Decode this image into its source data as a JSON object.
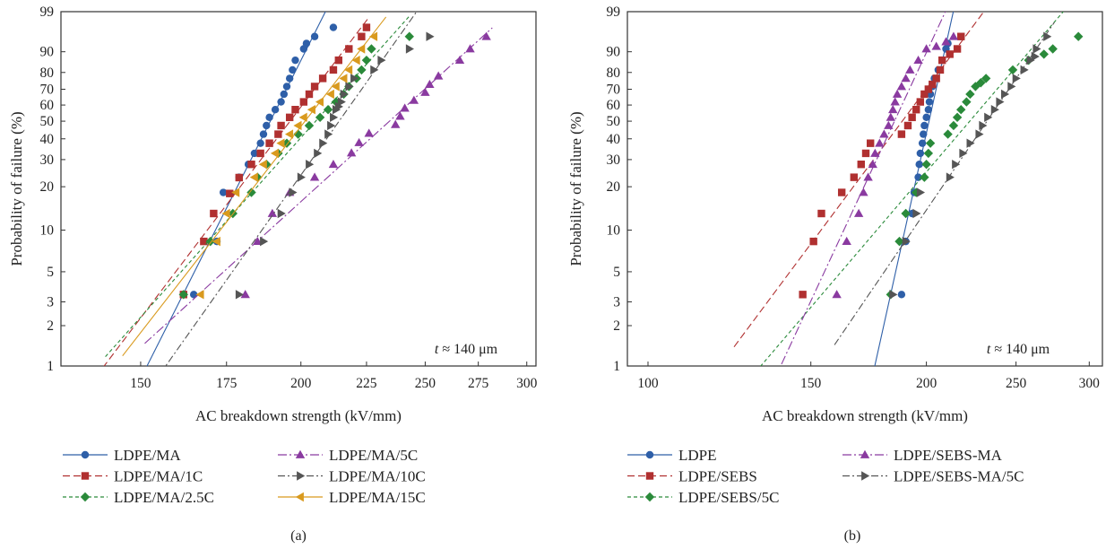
{
  "chart_data": [
    {
      "type": "scatter",
      "panel_label": "(a)",
      "xlabel": "AC breakdown strength (kV/mm)",
      "ylabel": "Probability of failure (%)",
      "x_scale": "log",
      "y_scale": "weibull",
      "xlim": [
        130,
        305
      ],
      "ylim": [
        1,
        99
      ],
      "x_ticks": [
        150,
        175,
        200,
        225,
        250,
        275,
        300
      ],
      "y_ticks": [
        1,
        2,
        3,
        5,
        10,
        20,
        30,
        40,
        50,
        60,
        70,
        80,
        90,
        99
      ],
      "annotation_prefix": "t",
      "annotation_rest": " ≈ 140 μm",
      "legend_position": "bottom",
      "series": [
        {
          "name": "LDPE/MA",
          "color": "#2e5fa8",
          "marker": "circle",
          "dash": "solid",
          "x": [
            165,
            172,
            174,
            179,
            182,
            184,
            186,
            187,
            188,
            189,
            191,
            193,
            194,
            195,
            196,
            197,
            198,
            201,
            202,
            205,
            212
          ],
          "y": [
            3.4,
            8.3,
            18.3,
            23.1,
            28.0,
            32.8,
            37.7,
            42.5,
            47.4,
            52.3,
            57.1,
            62.0,
            66.9,
            71.7,
            76.6,
            81.4,
            86.3,
            91.1,
            93.0,
            95.0,
            97.0
          ],
          "fit_x": [
            150,
            211.9
          ]
        },
        {
          "name": "LDPE/MA/1C",
          "color": "#b03030",
          "marker": "square",
          "dash": "8,4",
          "x": [
            162,
            168,
            171,
            176,
            179,
            183,
            186,
            189,
            192,
            193,
            196,
            198,
            201,
            203,
            205,
            208,
            212,
            214,
            218,
            223,
            225
          ],
          "y": [
            3.4,
            8.3,
            13.1,
            18.0,
            23.0,
            28.0,
            32.8,
            37.7,
            42.5,
            47.4,
            52.3,
            57.1,
            62.0,
            66.9,
            71.7,
            76.6,
            81.4,
            86.3,
            91.1,
            95.0,
            97.0
          ],
          "fit_x": [
            135.3,
            225.6
          ]
        },
        {
          "name": "LDPE/MA/2.5C",
          "color": "#2a8a3a",
          "marker": "diamond",
          "dash": "4,3",
          "x": [
            162,
            170,
            177,
            183,
            185,
            188,
            192,
            195,
            199,
            203,
            207,
            210,
            213,
            216,
            218,
            221,
            223,
            225,
            227,
            243
          ],
          "y": [
            3.4,
            8.3,
            13.1,
            18.3,
            23.1,
            28.0,
            32.8,
            37.7,
            42.5,
            47.4,
            52.3,
            57.1,
            62.0,
            66.9,
            71.7,
            76.6,
            81.4,
            86.3,
            91.1,
            95.0
          ],
          "fit_x": [
            140.8,
            243
          ]
        },
        {
          "name": "LDPE/MA/5C",
          "color": "#8a3aa0",
          "marker": "triangle-up",
          "dash": "10,3,2,3",
          "x": [
            181,
            185,
            190,
            196,
            205,
            212,
            219,
            222,
            226,
            237,
            239,
            241,
            245,
            250,
            252,
            256,
            266,
            271,
            279
          ],
          "y": [
            3.4,
            8.3,
            13.1,
            18.3,
            23.1,
            28.0,
            33.0,
            38.0,
            43.0,
            48.0,
            53.0,
            58.0,
            63.0,
            68.0,
            73.0,
            78.0,
            86.3,
            91.1,
            95.0
          ],
          "fit_x": [
            151.1,
            282
          ]
        },
        {
          "name": "LDPE/MA/10C",
          "color": "#555555",
          "marker": "triangle-right",
          "dash": "8,3,2,3",
          "x": [
            179,
            187,
            193,
            197,
            200,
            203,
            206,
            208,
            210,
            211,
            212,
            213,
            214,
            215,
            216,
            218,
            220,
            228,
            231,
            243,
            252
          ],
          "y": [
            3.4,
            8.3,
            13.1,
            18.3,
            23.1,
            28.0,
            32.8,
            37.7,
            42.5,
            47.4,
            52.3,
            57.1,
            59.0,
            62.0,
            66.9,
            71.7,
            76.6,
            81.4,
            86.3,
            91.1,
            95.0
          ],
          "fit_x": [
            148.6,
            252
          ]
        },
        {
          "name": "LDPE/MA/15C",
          "color": "#d99a1e",
          "marker": "triangle-left",
          "dash": "solid",
          "x": [
            167,
            172,
            175,
            178,
            184,
            187,
            191,
            193,
            196,
            199,
            201,
            204,
            207,
            211,
            213,
            216,
            218,
            221,
            223,
            228
          ],
          "y": [
            3.4,
            8.3,
            13.1,
            18.3,
            23.1,
            28.0,
            32.8,
            37.7,
            42.5,
            47.4,
            52.3,
            57.1,
            62.0,
            66.9,
            71.7,
            76.6,
            81.4,
            86.3,
            91.1,
            95.0
          ],
          "fit_x": [
            145.2,
            233
          ]
        }
      ]
    },
    {
      "type": "scatter",
      "panel_label": "(b)",
      "xlabel": "AC breakdown strength (kV/mm)",
      "ylabel": "Probability of failure (%)",
      "x_scale": "log",
      "y_scale": "weibull",
      "xlim": [
        95,
        310
      ],
      "ylim": [
        1,
        99
      ],
      "x_ticks": [
        100,
        150,
        200,
        250,
        300
      ],
      "y_ticks": [
        1,
        2,
        3,
        5,
        10,
        20,
        30,
        40,
        50,
        60,
        70,
        80,
        90,
        99
      ],
      "annotation_prefix": "t",
      "annotation_rest": " ≈ 140 μm",
      "legend_position": "bottom",
      "series": [
        {
          "name": "LDPE",
          "color": "#2e5fa8",
          "marker": "circle",
          "dash": "solid",
          "x": [
            188,
            190,
            193,
            194,
            196,
            196.5,
            197,
            198,
            198.5,
            199,
            200,
            201,
            201.5,
            202,
            203,
            204,
            206,
            208,
            210,
            211,
            218
          ],
          "y": [
            3.4,
            8.3,
            13.1,
            18.3,
            23.1,
            28.0,
            32.8,
            37.7,
            42.5,
            47.4,
            52.3,
            57.1,
            62.0,
            66.9,
            71.7,
            76.6,
            81.4,
            86.3,
            91.1,
            93.0,
            95.0
          ],
          "fit_x": [
            172.6,
            220
          ]
        },
        {
          "name": "LDPE/SEBS",
          "color": "#b03030",
          "marker": "square",
          "dash": "8,4",
          "x": [
            147,
            151,
            154,
            162,
            167,
            170,
            172,
            174,
            188,
            191,
            193,
            195,
            197,
            199,
            201,
            203,
            205,
            207,
            208,
            212,
            216,
            218
          ],
          "y": [
            3.4,
            8.3,
            13.1,
            18.3,
            23.1,
            28.0,
            32.8,
            37.7,
            42.5,
            47.4,
            52.3,
            57.1,
            62.0,
            66.9,
            70.0,
            73.0,
            76.6,
            81.4,
            86.3,
            89.0,
            91.1,
            95.0
          ],
          "fit_x": [
            123.9,
            232
          ]
        },
        {
          "name": "LDPE/SEBS/5C",
          "color": "#2a8a3a",
          "marker": "diamond",
          "dash": "4,3",
          "x": [
            183,
            187,
            190,
            195,
            199,
            200,
            201,
            202,
            211,
            214,
            216,
            218,
            221,
            223,
            226,
            229,
            232,
            248,
            258,
            268,
            274,
            292
          ],
          "y": [
            3.4,
            8.3,
            13.1,
            18.3,
            23.1,
            28.0,
            32.8,
            37.7,
            42.5,
            47.4,
            52.3,
            57.1,
            62.0,
            66.9,
            71.7,
            74.0,
            76.6,
            81.4,
            86.3,
            89.0,
            91.1,
            95.0
          ],
          "fit_x": [
            125.7,
            295
          ]
        },
        {
          "name": "LDPE/SEBS-MA",
          "color": "#8a3aa0",
          "marker": "triangle-up",
          "dash": "10,3,2,3",
          "x": [
            160,
            164,
            169,
            171,
            173,
            175,
            176,
            178,
            180,
            182,
            183,
            184,
            185,
            186,
            188,
            190,
            192,
            196,
            200,
            205,
            210,
            214
          ],
          "y": [
            3.4,
            8.3,
            13.1,
            18.3,
            23.1,
            28.0,
            32.8,
            37.7,
            42.5,
            47.4,
            52.3,
            57.1,
            62.0,
            66.9,
            71.7,
            76.6,
            81.4,
            86.3,
            91.1,
            92.0,
            93.5,
            95.0
          ],
          "fit_x": [
            130.3,
            218
          ]
        },
        {
          "name": "LDPE/SEBS-MA/5C",
          "color": "#555555",
          "marker": "triangle-right",
          "dash": "8,3,2,3",
          "x": [
            184,
            190,
            195,
            197,
            212,
            215,
            219,
            223,
            228,
            230,
            233,
            237,
            240,
            243,
            247,
            250,
            255,
            259,
            262,
            263,
            270
          ],
          "y": [
            3.4,
            8.3,
            13.1,
            18.3,
            23.1,
            28.0,
            32.8,
            37.7,
            42.5,
            47.4,
            52.3,
            57.1,
            62.0,
            66.9,
            71.7,
            76.6,
            81.4,
            86.3,
            88.0,
            91.1,
            95.0
          ],
          "fit_x": [
            159.1,
            275
          ]
        }
      ]
    }
  ]
}
